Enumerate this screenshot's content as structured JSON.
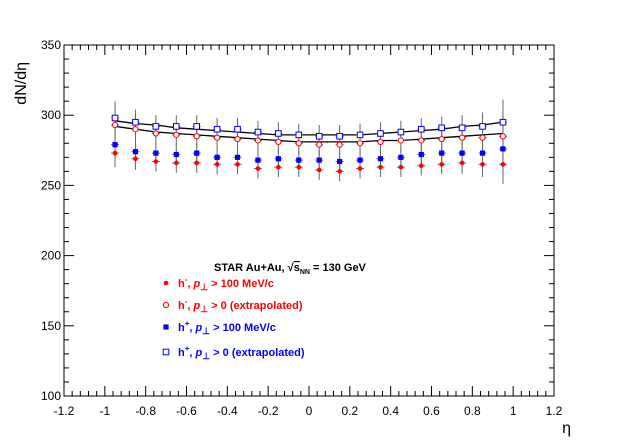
{
  "chart_data": {
    "type": "scatter",
    "xlabel": "η",
    "ylabel": "dN/dη",
    "xlim": [
      -1.2,
      1.2
    ],
    "ylim": [
      100,
      350
    ],
    "x_ticks": [
      "-1.2",
      "-1",
      "-0.8",
      "-0.6",
      "-0.4",
      "-0.2",
      "0",
      "0.2",
      "0.4",
      "0.6",
      "0.8",
      "1",
      "1.2"
    ],
    "y_ticks": [
      "100",
      "150",
      "200",
      "250",
      "300",
      "350"
    ],
    "grid": false,
    "legend_position": "lower-left",
    "legend_title": "STAR Au+Au, √s_NN = 130 GeV",
    "legend_title_parts": {
      "prefix": "STAR Au+Au, ",
      "sqrt": "√",
      "s": "s",
      "sub": "NN",
      "suffix": " = 130 GeV"
    },
    "x": [
      -0.95,
      -0.85,
      -0.75,
      -0.65,
      -0.55,
      -0.45,
      -0.35,
      -0.25,
      -0.15,
      -0.05,
      0.05,
      0.15,
      0.25,
      0.35,
      0.45,
      0.55,
      0.65,
      0.75,
      0.85,
      0.95
    ],
    "series": [
      {
        "name": "h⁻, p⊥ > 100 MeV/c",
        "label_parts": {
          "particle": "h",
          "charge": "-",
          "pt": "p",
          "perp": "⊥",
          "cut": " > 100 MeV/c"
        },
        "color": "#ff0000",
        "marker": "filled-circle",
        "values": [
          273,
          269,
          267,
          266,
          266,
          265,
          265,
          262,
          263,
          263,
          261,
          260,
          262,
          263,
          263,
          264,
          265,
          266,
          265,
          265
        ],
        "errors": [
          10,
          8,
          7,
          7,
          7,
          7,
          7,
          7,
          7,
          7,
          7,
          7,
          7,
          7,
          7,
          7,
          7,
          8,
          9,
          14
        ]
      },
      {
        "name": "h⁻, p⊥ > 0 (extrapolated)",
        "label_parts": {
          "particle": "h",
          "charge": "-",
          "pt": "p",
          "perp": "⊥",
          "cut": " >    0 (extrapolated)"
        },
        "color": "#ff0000",
        "marker": "open-circle",
        "values": [
          293,
          290,
          287,
          286,
          285,
          284,
          283,
          282,
          281,
          280,
          279,
          279,
          280,
          281,
          282,
          282,
          283,
          284,
          284,
          285
        ],
        "errors": [
          11,
          9,
          8,
          8,
          8,
          8,
          8,
          8,
          8,
          8,
          8,
          8,
          8,
          8,
          8,
          8,
          8,
          9,
          9,
          15
        ],
        "fit": [
          292,
          290,
          288,
          287,
          286,
          285,
          284,
          283,
          282,
          281,
          281,
          281,
          281,
          282,
          282,
          283,
          284,
          285,
          286,
          287
        ]
      },
      {
        "name": "h⁺, p⊥ > 100 MeV/c",
        "label_parts": {
          "particle": "h",
          "charge": "+",
          "pt": "p",
          "perp": "⊥",
          "cut": " > 100 MeV/c"
        },
        "color": "#0000ff",
        "marker": "filled-square",
        "values": [
          279,
          274,
          273,
          272,
          273,
          270,
          270,
          268,
          269,
          268,
          268,
          267,
          268,
          269,
          270,
          272,
          273,
          273,
          273,
          276
        ],
        "errors": [
          11,
          8,
          7,
          7,
          7,
          7,
          7,
          7,
          7,
          7,
          7,
          7,
          7,
          7,
          7,
          7,
          7,
          8,
          9,
          15
        ]
      },
      {
        "name": "h⁺, p⊥ > 0 (extrapolated)",
        "label_parts": {
          "particle": "h",
          "charge": "+",
          "pt": "p",
          "perp": "⊥",
          "cut": " >    0 (extrapolated)"
        },
        "color": "#0000ff",
        "marker": "open-square",
        "values": [
          298,
          295,
          292,
          292,
          292,
          290,
          290,
          288,
          287,
          286,
          285,
          285,
          286,
          287,
          288,
          290,
          291,
          291,
          292,
          295
        ],
        "errors": [
          12,
          9,
          8,
          8,
          8,
          8,
          8,
          8,
          8,
          8,
          8,
          8,
          8,
          8,
          8,
          8,
          8,
          9,
          10,
          16
        ],
        "fit": [
          296,
          294,
          293,
          291,
          290,
          289,
          288,
          287,
          286,
          286,
          286,
          286,
          286,
          287,
          288,
          289,
          290,
          292,
          293,
          295
        ]
      }
    ]
  }
}
